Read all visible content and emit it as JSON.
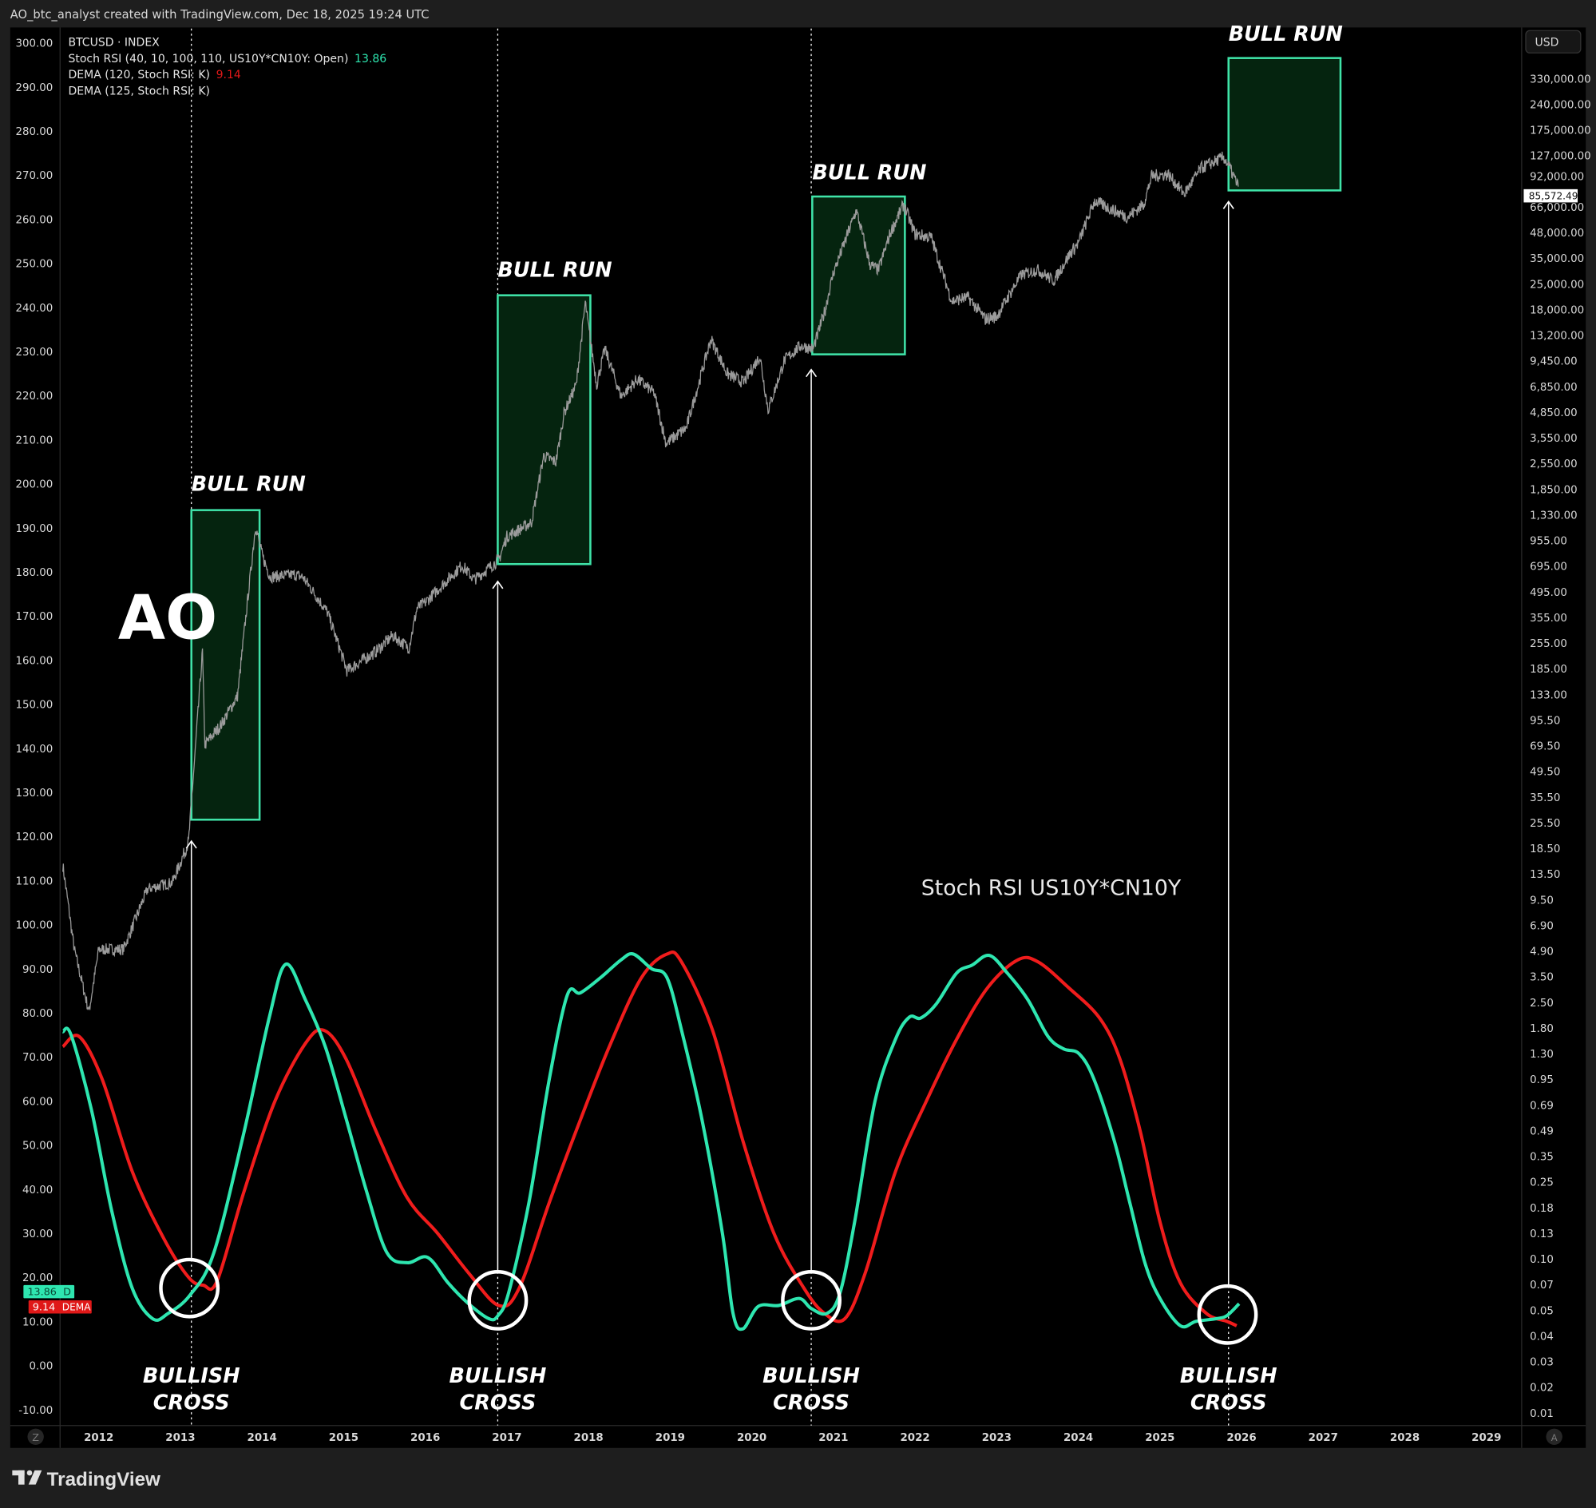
{
  "header": {
    "attribution": "AO_btc_analyst created with TradingView.com, Dec 18, 2025 19:24 UTC"
  },
  "legend": {
    "symbol": "BTCUSD · INDEX",
    "stoch": "Stoch RSI (40, 10, 100, 110, US10Y*CN10Y: Open)",
    "stoch_value": "13.86",
    "dema120": "DEMA (120, Stoch RSI: K)",
    "dema120_value": "9.14",
    "dema125": "DEMA (125, Stoch RSI: K)"
  },
  "price_scale": {
    "currency": "USD",
    "last_price": "85,572.49",
    "labels": [
      "330,000.00",
      "240,000.00",
      "175,000.00",
      "127,000.00",
      "92,000.00",
      "66,000.00",
      "48,000.00",
      "35,000.00",
      "25,000.00",
      "18,000.00",
      "13,200.00",
      "9,450.00",
      "6,850.00",
      "4,850.00",
      "3,550.00",
      "2,550.00",
      "1,850.00",
      "1,330.00",
      "955.00",
      "695.00",
      "495.00",
      "355.00",
      "255.00",
      "185.00",
      "133.00",
      "95.50",
      "69.50",
      "49.50",
      "35.50",
      "25.50",
      "18.50",
      "13.50",
      "9.50",
      "6.90",
      "4.90",
      "3.50",
      "2.50",
      "1.80",
      "1.30",
      "0.95",
      "0.69",
      "0.49",
      "0.35",
      "0.25",
      "0.18",
      "0.13",
      "0.10",
      "0.07",
      "0.05",
      "0.04",
      "0.03",
      "0.02",
      "0.01"
    ]
  },
  "left_scale": {
    "labels": [
      "300.00",
      "290.00",
      "280.00",
      "270.00",
      "260.00",
      "250.00",
      "240.00",
      "230.00",
      "220.00",
      "210.00",
      "200.00",
      "190.00",
      "180.00",
      "170.00",
      "160.00",
      "150.00",
      "140.00",
      "130.00",
      "120.00",
      "110.00",
      "100.00",
      "90.00",
      "80.00",
      "70.00",
      "60.00",
      "50.00",
      "40.00",
      "30.00",
      "20.00",
      "10.00",
      "0.00",
      "-10.00"
    ]
  },
  "badges": {
    "k": {
      "value": "13.86",
      "tag": "D"
    },
    "dema": {
      "value": "9.14",
      "tag": "DEMA"
    }
  },
  "time_scale": {
    "labels": [
      "2012",
      "2013",
      "2014",
      "2015",
      "2016",
      "2017",
      "2018",
      "2019",
      "2020",
      "2021",
      "2022",
      "2023",
      "2024",
      "2025",
      "2026",
      "2027",
      "2028",
      "2029"
    ],
    "z_button": "Z",
    "a_button": "A"
  },
  "annotations": {
    "ao": "AO",
    "indicator_title": "Stoch RSI US10Y*CN10Y",
    "bull_run": "BULL RUN",
    "bullish": "BULLISH",
    "cross": "CROSS"
  },
  "footer": {
    "brand": "TradingView"
  },
  "colors": {
    "k_line": "#2ee6b0",
    "dema_line": "#f01c1c",
    "price": "#9b9b9b",
    "box_fill": "#05240f",
    "box_stroke": "#3fe3a8"
  },
  "chart_data": {
    "type": "line",
    "title": "BTCUSD · INDEX with Stoch RSI US10Y*CN10Y",
    "xlabel": "",
    "ylabel": "",
    "xlim": [
      2011.5,
      2029.5
    ],
    "ylim": [
      -10,
      300
    ],
    "grid": false,
    "series": [
      {
        "name": "Stoch RSI K (US10Y*CN10Y)",
        "axis": "left",
        "x": [
          2011.56,
          2011.66,
          2011.91,
          2012.16,
          2012.41,
          2012.66,
          2012.85,
          2013.12,
          2013.41,
          2013.78,
          2014.09,
          2014.29,
          2014.53,
          2014.78,
          2015.03,
          2015.28,
          2015.53,
          2015.78,
          2016.03,
          2016.28,
          2016.53,
          2016.78,
          2016.89,
          2017.02,
          2017.27,
          2017.52,
          2017.74,
          2017.9,
          2018.15,
          2018.4,
          2018.55,
          2018.77,
          2018.96,
          2019.14,
          2019.39,
          2019.64,
          2019.77,
          2019.89,
          2020.08,
          2020.33,
          2020.58,
          2020.73,
          2020.92,
          2021.08,
          2021.26,
          2021.51,
          2021.76,
          2021.93,
          2022.07,
          2022.26,
          2022.51,
          2022.7,
          2022.91,
          2023.13,
          2023.38,
          2023.63,
          2023.82,
          2024.01,
          2024.19,
          2024.44,
          2024.63,
          2024.82,
          2025.0,
          2025.25,
          2025.44,
          2025.69,
          2025.82,
          2025.97
        ],
        "y": [
          75.7,
          75,
          58,
          35,
          17.5,
          10.6,
          11.8,
          16,
          25.6,
          53,
          79,
          91,
          83,
          72,
          56,
          39.5,
          25.6,
          23.3,
          24.5,
          18.7,
          14,
          10.6,
          11.3,
          16.4,
          37,
          65,
          84,
          84.5,
          88,
          92,
          93.3,
          90,
          88,
          76,
          55.7,
          30,
          11.8,
          8.3,
          13.4,
          13.6,
          15.2,
          12.9,
          11.8,
          16.4,
          32.6,
          60,
          74,
          79,
          78.8,
          82,
          89,
          90.8,
          93,
          89,
          83,
          74.6,
          71.8,
          70.7,
          65,
          51,
          37,
          23,
          15.2,
          9,
          10,
          10.6,
          11.3,
          14
        ]
      },
      {
        "name": "DEMA (120, Stoch RSI: K)",
        "axis": "left",
        "x": [
          2011.56,
          2011.76,
          2012.04,
          2012.41,
          2012.79,
          2013.1,
          2013.28,
          2013.45,
          2013.78,
          2014.16,
          2014.53,
          2014.76,
          2015.03,
          2015.4,
          2015.78,
          2016.15,
          2016.53,
          2016.9,
          2017.15,
          2017.52,
          2017.9,
          2018.27,
          2018.65,
          2018.96,
          2019.14,
          2019.52,
          2019.89,
          2020.27,
          2020.64,
          2020.89,
          2021.14,
          2021.39,
          2021.76,
          2022.14,
          2022.51,
          2022.89,
          2023.26,
          2023.51,
          2023.88,
          2024.26,
          2024.51,
          2024.76,
          2025.0,
          2025.25,
          2025.57,
          2025.82,
          2025.94
        ],
        "y": [
          72.3,
          74.6,
          65,
          44,
          29,
          20,
          18.2,
          19.2,
          39.5,
          60,
          73,
          76,
          69.5,
          53,
          38,
          30,
          21,
          13.6,
          17.5,
          37,
          55.7,
          73,
          88,
          93.3,
          91.5,
          76,
          51,
          30,
          17.5,
          11.8,
          10.6,
          21,
          44,
          60,
          74,
          85.7,
          92,
          91.5,
          85.7,
          78.8,
          69.5,
          53,
          32.6,
          18.7,
          11.8,
          10,
          9
        ]
      },
      {
        "name": "BTCUSD",
        "axis": "right",
        "scale": "log",
        "x": [
          2011.56,
          2011.7,
          2011.88,
          2012.0,
          2012.3,
          2012.6,
          2012.9,
          2013.1,
          2013.27,
          2013.3,
          2013.5,
          2013.7,
          2013.92,
          2014.0,
          2014.1,
          2014.4,
          2014.5,
          2014.8,
          2015.04,
          2015.4,
          2015.6,
          2015.8,
          2015.9,
          2016.0,
          2016.45,
          2016.6,
          2016.9,
          2017.0,
          2017.3,
          2017.45,
          2017.6,
          2017.7,
          2017.85,
          2017.96,
          2018.1,
          2018.2,
          2018.4,
          2018.6,
          2018.8,
          2018.95,
          2019.2,
          2019.5,
          2019.7,
          2019.9,
          2020.1,
          2020.2,
          2020.4,
          2020.6,
          2020.75,
          2020.9,
          2021.0,
          2021.28,
          2021.45,
          2021.55,
          2021.7,
          2021.86,
          2022.0,
          2022.2,
          2022.45,
          2022.65,
          2022.86,
          2023.0,
          2023.3,
          2023.5,
          2023.7,
          2023.9,
          2024.0,
          2024.2,
          2024.6,
          2024.8,
          2024.9,
          2025.1,
          2025.3,
          2025.5,
          2025.78,
          2025.85,
          2025.96
        ],
        "y": [
          15,
          5,
          2.2,
          5,
          5,
          11,
          12,
          20,
          230,
          70,
          90,
          130,
          1150,
          800,
          600,
          620,
          600,
          380,
          180,
          230,
          280,
          240,
          400,
          430,
          700,
          580,
          750,
          1000,
          1200,
          2800,
          2600,
          4800,
          7000,
          19500,
          7000,
          11000,
          6000,
          7500,
          6300,
          3300,
          4000,
          12500,
          8000,
          7200,
          10000,
          5000,
          9500,
          11500,
          11000,
          18000,
          29000,
          63000,
          32000,
          30000,
          48000,
          68000,
          47000,
          45000,
          20000,
          21000,
          16000,
          16500,
          28000,
          30000,
          26000,
          37000,
          42000,
          71000,
          58000,
          68000,
          98000,
          100000,
          78000,
          108000,
          124000,
          110000,
          85572
        ]
      }
    ],
    "bull_runs": [
      {
        "start": 2013.12,
        "end": 2013.95,
        "price_low": 20,
        "price_high": 1250
      },
      {
        "start": 2016.9,
        "end": 2018.03,
        "price_low": 750,
        "price_high": 20000
      },
      {
        "start": 2020.75,
        "end": 2021.88,
        "price_low": 10000,
        "price_high": 70000
      },
      {
        "start": 2025.86,
        "end": 2027.23,
        "price_low": 75000,
        "price_high": 330000
      }
    ],
    "bullish_crosses": [
      2013.12,
      2016.9,
      2020.74,
      2025.85
    ],
    "legend": [
      "Stoch RSI 13.86",
      "DEMA 9.14",
      "DEMA (125)"
    ]
  }
}
